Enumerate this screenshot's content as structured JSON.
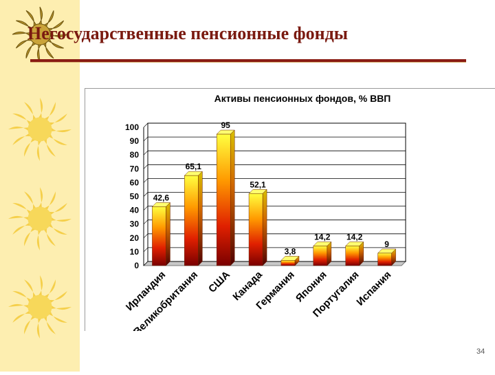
{
  "slide": {
    "title": "Негосударственные пенсионные фонды",
    "page_number": "34",
    "accent_color": "#8a1c14",
    "sidebar_color": "#fdeeb0",
    "decoration_icon": "sun-icon"
  },
  "chart_data": {
    "type": "bar",
    "title": "Активы пенсионных фондов, % ВВП",
    "categories": [
      "Ирландия",
      "Великобритания",
      "США",
      "Канада",
      "Германия",
      "Япония",
      "Португалия",
      "Испания"
    ],
    "values": [
      42.6,
      65.1,
      95,
      52.1,
      3.8,
      14.2,
      14.2,
      9
    ],
    "value_labels": [
      "42,6",
      "65,1",
      "95",
      "52,1",
      "3,8",
      "14,2",
      "14,2",
      "9"
    ],
    "yticks": [
      0,
      10,
      20,
      30,
      40,
      50,
      60,
      70,
      80,
      90,
      100
    ],
    "ylim": [
      0,
      100
    ],
    "grid": true,
    "bar_gradient": [
      "#ffff40",
      "#ff9a00",
      "#e02000",
      "#7a0000"
    ]
  }
}
